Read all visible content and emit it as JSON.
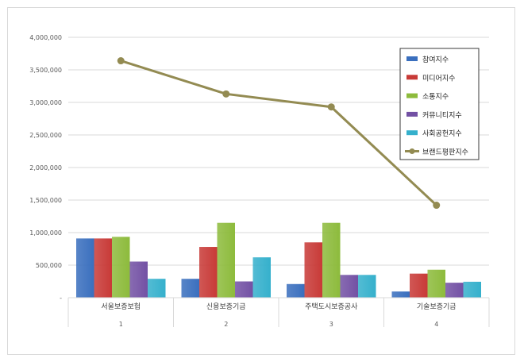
{
  "chart_data": {
    "type": "bar",
    "categories": [
      "서울보증보험",
      "신용보증기금",
      "주택도시보증공사",
      "기술보증기금"
    ],
    "category_index": [
      "1",
      "2",
      "3",
      "4"
    ],
    "ylim": [
      0,
      4000000
    ],
    "yticks": [
      "-",
      "500,000",
      "1,000,000",
      "1,500,000",
      "2,000,000",
      "2,500,000",
      "3,000,000",
      "3,500,000",
      "4,000,000"
    ],
    "grid": true,
    "legend_position": "top-right",
    "series": [
      {
        "name": "참여지수",
        "type": "bar",
        "color": "#3a6fbe",
        "values": [
          910000,
          290000,
          210000,
          95000
        ]
      },
      {
        "name": "미디어지수",
        "type": "bar",
        "color": "#c83a37",
        "values": [
          910000,
          780000,
          850000,
          370000
        ]
      },
      {
        "name": "소통지수",
        "type": "bar",
        "color": "#8dbb3c",
        "values": [
          935000,
          1150000,
          1150000,
          430000
        ]
      },
      {
        "name": "커뮤니티지수",
        "type": "bar",
        "color": "#7351a4",
        "values": [
          555000,
          250000,
          350000,
          230000
        ]
      },
      {
        "name": "사회공헌지수",
        "type": "bar",
        "color": "#35b0cc",
        "values": [
          290000,
          620000,
          350000,
          245000
        ]
      },
      {
        "name": "브랜드평판지수",
        "type": "line",
        "color": "#938b52",
        "values": [
          3640000,
          3130000,
          2930000,
          1420000
        ]
      }
    ]
  }
}
